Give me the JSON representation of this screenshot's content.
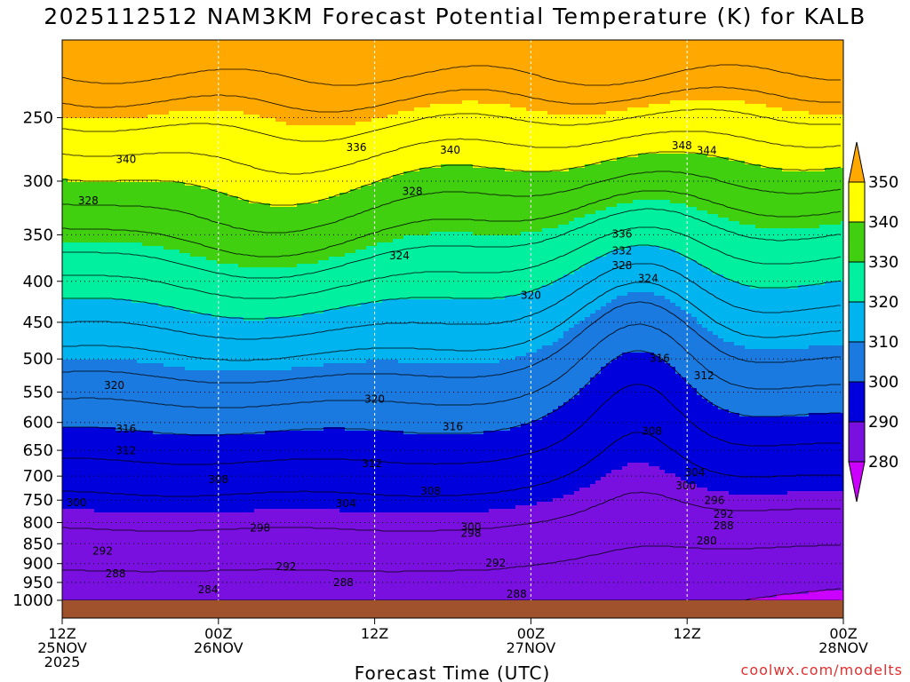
{
  "title": "2025112512 NAM3KM Forecast Potential Temperature (K) for KALB",
  "watermark": "coolwx.com/modelts",
  "chart_data": {
    "type": "heatmap",
    "title": "2025112512 NAM3KM Forecast Potential Temperature (K) for KALB",
    "xlabel": "Forecast Time (UTC)",
    "ylabel": "",
    "x_range_hours": [
      0,
      60
    ],
    "y_range_hpa": [
      1000,
      200
    ],
    "y_scale": "log-pressure",
    "y_ticks": [
      250,
      300,
      350,
      400,
      450,
      500,
      550,
      600,
      650,
      700,
      750,
      800,
      850,
      900,
      950,
      1000
    ],
    "x_ticks": [
      {
        "hour": 0,
        "lines": [
          "12Z",
          "25NOV",
          "2025"
        ]
      },
      {
        "hour": 12,
        "lines": [
          "00Z",
          "26NOV"
        ]
      },
      {
        "hour": 24,
        "lines": [
          "12Z"
        ]
      },
      {
        "hour": 36,
        "lines": [
          "00Z",
          "27NOV"
        ]
      },
      {
        "hour": 48,
        "lines": [
          "12Z"
        ]
      },
      {
        "hour": 60,
        "lines": [
          "00Z",
          "28NOV"
        ]
      }
    ],
    "grid": true,
    "colorbar": {
      "position": "right",
      "levels": [
        280,
        290,
        300,
        310,
        320,
        330,
        340,
        350
      ],
      "colors": [
        "#cc00ff",
        "#7a10e0",
        "#0000dd",
        "#1a7ae0",
        "#00b4f0",
        "#00f0a0",
        "#40d010",
        "#ffff00",
        "#ffa800"
      ]
    },
    "contour_interval": 4,
    "contour_labels": [
      {
        "hour": 4.9,
        "p": 335,
        "text": "340"
      },
      {
        "hour": 22.6,
        "p": 302,
        "text": "336"
      },
      {
        "hour": 29.8,
        "p": 309,
        "text": "340"
      },
      {
        "hour": 47.6,
        "p": 297,
        "text": "348"
      },
      {
        "hour": 49.5,
        "p": 311,
        "text": "344"
      },
      {
        "hour": 2.0,
        "p": 447,
        "text": "328"
      },
      {
        "hour": 26.9,
        "p": 422,
        "text": "328"
      },
      {
        "hour": 43.0,
        "p": 538,
        "text": "336"
      },
      {
        "hour": 43.0,
        "p": 584,
        "text": "332"
      },
      {
        "hour": 43.0,
        "p": 624,
        "text": "328"
      },
      {
        "hour": 45.0,
        "p": 659,
        "text": "324"
      },
      {
        "hour": 25.9,
        "p": 597,
        "text": "324"
      },
      {
        "hour": 36.0,
        "p": 705,
        "text": "320"
      },
      {
        "hour": 45.9,
        "p": 877,
        "text": "316"
      },
      {
        "hour": 49.3,
        "p": 924,
        "text": "312"
      },
      {
        "hour": 4.0,
        "p": 950,
        "text": "320"
      },
      {
        "hour": 24.0,
        "p": 988,
        "text": "320"
      },
      {
        "hour": 4.9,
        "p": 1069,
        "text": "316"
      },
      {
        "hour": 30.0,
        "p": 1063,
        "text": "316"
      },
      {
        "hour": 45.3,
        "p": 1075,
        "text": "308"
      },
      {
        "hour": 4.9,
        "p": 1128,
        "text": "312"
      },
      {
        "hour": 23.8,
        "p": 1163,
        "text": "312"
      },
      {
        "hour": 12.0,
        "p": 1207,
        "text": "308"
      },
      {
        "hour": 28.3,
        "p": 1238,
        "text": "308"
      },
      {
        "hour": 48.6,
        "p": 1187,
        "text": "304"
      },
      {
        "hour": 47.9,
        "p": 1223,
        "text": "300"
      },
      {
        "hour": 1.1,
        "p": 1270,
        "text": "300"
      },
      {
        "hour": 21.8,
        "p": 1272,
        "text": "304"
      },
      {
        "hour": 50.1,
        "p": 1264,
        "text": "296"
      },
      {
        "hour": 50.8,
        "p": 1301,
        "text": "292"
      },
      {
        "hour": 50.8,
        "p": 1332,
        "text": "288"
      },
      {
        "hour": 49.5,
        "p": 1374,
        "text": "280"
      },
      {
        "hour": 15.2,
        "p": 1338,
        "text": "298"
      },
      {
        "hour": 31.4,
        "p": 1336,
        "text": "300"
      },
      {
        "hour": 31.4,
        "p": 1353,
        "text": "298"
      },
      {
        "hour": 3.1,
        "p": 1401,
        "text": "292"
      },
      {
        "hour": 17.2,
        "p": 1443,
        "text": "292"
      },
      {
        "hour": 33.3,
        "p": 1434,
        "text": "292"
      },
      {
        "hour": 4.1,
        "p": 1463,
        "text": "288"
      },
      {
        "hour": 21.6,
        "p": 1487,
        "text": "288"
      },
      {
        "hour": 34.9,
        "p": 1519,
        "text": "288"
      },
      {
        "hour": 11.2,
        "p": 1506,
        "text": "284"
      }
    ]
  }
}
